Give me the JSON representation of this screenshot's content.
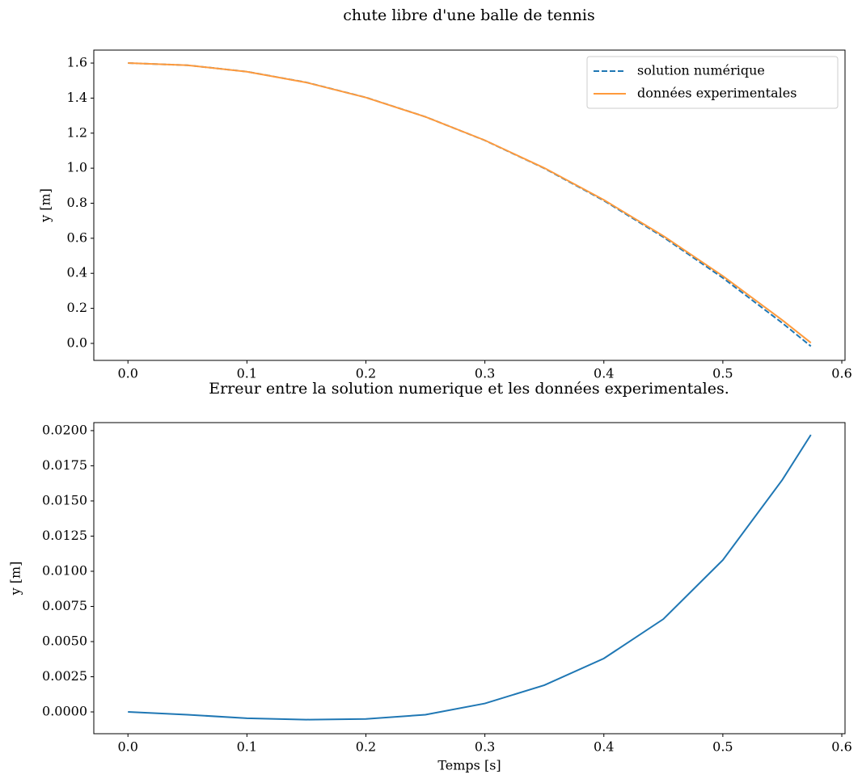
{
  "chart_data": [
    {
      "type": "line",
      "title": "chute libre d'une balle de tennis",
      "ylabel": "y [m]",
      "x": [
        0,
        0.05,
        0.1,
        0.15,
        0.2,
        0.25,
        0.3,
        0.35,
        0.4,
        0.45,
        0.5,
        0.55,
        0.574
      ],
      "series": [
        {
          "name": "solution numérique",
          "color": "#1f77b4",
          "linestyle": "--",
          "values": [
            1.6,
            1.5877,
            1.551,
            1.4896,
            1.4038,
            1.2934,
            1.1586,
            0.9991,
            0.8152,
            0.6067,
            0.3738,
            0.1162,
            -0.0161
          ]
        },
        {
          "name": "données experimentales",
          "color": "#ff9a3c",
          "linestyle": "-",
          "values": [
            1.6,
            1.5875,
            1.5505,
            1.4891,
            1.4033,
            1.2932,
            1.1592,
            1.001,
            0.819,
            0.6133,
            0.3846,
            0.1327,
            0.0036
          ]
        }
      ],
      "xlim": [
        -0.0287,
        0.6027
      ],
      "ylim": [
        -0.097,
        1.674
      ],
      "xticks": [
        {
          "value": 0,
          "label": "0.0"
        },
        0.1,
        0.2,
        0.3,
        0.4,
        0.5,
        0.6
      ],
      "yticks": [
        {
          "value": 0,
          "label": "0.0"
        },
        0.2,
        0.4,
        0.6,
        0.8,
        {
          "value": 1,
          "label": "1.0"
        },
        1.2,
        1.4,
        1.6
      ],
      "legend": "upper right"
    },
    {
      "type": "line",
      "title": "Erreur entre la solution numerique et les données experimentales.",
      "xlabel": "Temps [s]",
      "ylabel": "y [m]",
      "x": [
        0,
        0.05,
        0.1,
        0.15,
        0.2,
        0.25,
        0.3,
        0.35,
        0.4,
        0.45,
        0.5,
        0.55,
        0.574
      ],
      "values": [
        0,
        -0.0002,
        -0.00045,
        -0.00055,
        -0.0005,
        -0.0002,
        0.0006,
        0.0019,
        0.0038,
        0.0066,
        0.0108,
        0.0165,
        0.0197
      ],
      "color": "#1f77b4",
      "xlim": [
        -0.0287,
        0.6027
      ],
      "ylim": [
        -0.00155,
        0.02057
      ],
      "xticks": [
        {
          "value": 0,
          "label": "0.0"
        },
        0.1,
        0.2,
        0.3,
        0.4,
        0.5,
        0.6
      ],
      "yticks": [
        {
          "value": 0,
          "label": "0.0000"
        },
        0.0025,
        {
          "value": 0.005,
          "label": "0.0050"
        },
        0.0075,
        {
          "value": 0.01,
          "label": "0.0100"
        },
        0.0125,
        {
          "value": 0.015,
          "label": "0.0150"
        },
        0.0175,
        {
          "value": 0.02,
          "label": "0.0200"
        }
      ]
    }
  ]
}
